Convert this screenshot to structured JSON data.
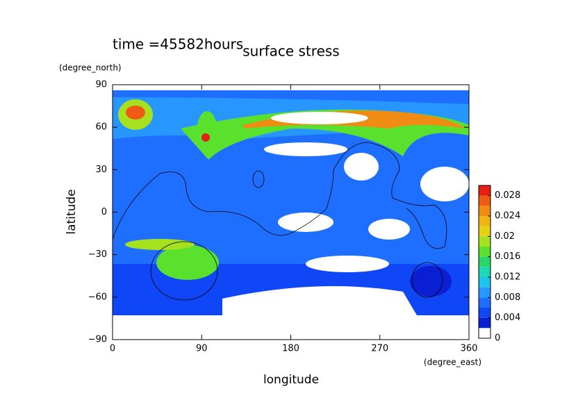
{
  "chart_data": {
    "type": "contour",
    "title": "surface stress",
    "subtitle": "time =45582hours",
    "x_label": "longitude",
    "y_label": "latitude",
    "x_unit": "(degree_east)",
    "y_unit": "(degree_north)",
    "xlim": [
      0,
      360
    ],
    "xticks": [
      0,
      90,
      180,
      270,
      360
    ],
    "ylim": [
      -90,
      90
    ],
    "yticks": [
      {
        "value": -90,
        "label": "−90"
      },
      {
        "value": -60,
        "label": "−60"
      },
      {
        "value": -30,
        "label": "−30"
      },
      0,
      30,
      60,
      90
    ],
    "colorbar": {
      "lim": [
        0,
        0.03
      ],
      "ticks": [
        0,
        0.004,
        0.008,
        0.012,
        0.016,
        0.02,
        0.024,
        0.028
      ],
      "colors": [
        "#ffffff",
        "#0a1ed2",
        "#0f46f5",
        "#1e6eff",
        "#2896ff",
        "#1ec3eb",
        "#1ed7b4",
        "#28d768",
        "#5ae12d",
        "#a5e11e",
        "#e6d214",
        "#f0b414",
        "#f08c14",
        "#f05a14",
        "#e61e14"
      ]
    }
  }
}
